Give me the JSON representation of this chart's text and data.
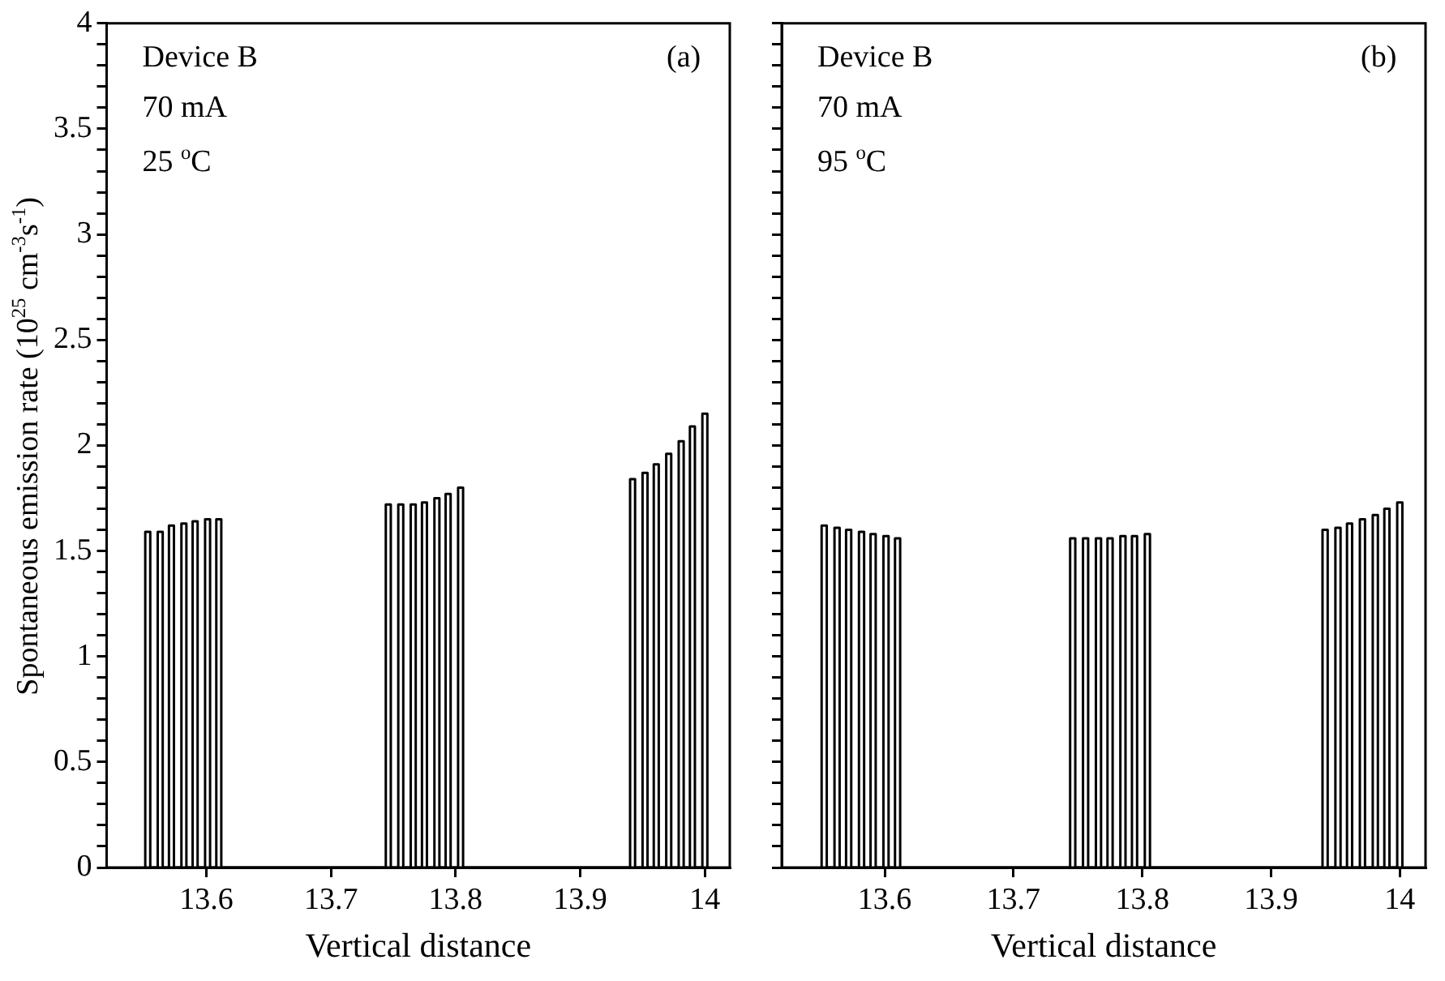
{
  "chart_data": [
    {
      "type": "line",
      "ylabel": "Spontaneous emission rate (10$^{25}$ cm$^{-3}$s$^{-1}$)",
      "xlabel": "Vertical distance",
      "annotations": [
        "Device B",
        "70 mA",
        "25 $^{o}$C",
        "(a)"
      ],
      "x": [
        13.551,
        13.551,
        13.555,
        13.555,
        13.561,
        13.561,
        13.565,
        13.565,
        13.57,
        13.57,
        13.574,
        13.574,
        13.58,
        13.58,
        13.584,
        13.584,
        13.589,
        13.589,
        13.593,
        13.593,
        13.599,
        13.599,
        13.603,
        13.603,
        13.608,
        13.608,
        13.612,
        13.612,
        13.744,
        13.744,
        13.748,
        13.748,
        13.754,
        13.754,
        13.758,
        13.758,
        13.764,
        13.764,
        13.768,
        13.768,
        13.773,
        13.773,
        13.777,
        13.777,
        13.783,
        13.783,
        13.787,
        13.787,
        13.792,
        13.792,
        13.796,
        13.796,
        13.802,
        13.802,
        13.806,
        13.806,
        13.94,
        13.94,
        13.944,
        13.944,
        13.95,
        13.95,
        13.954,
        13.954,
        13.959,
        13.959,
        13.963,
        13.963,
        13.969,
        13.969,
        13.973,
        13.973,
        13.979,
        13.979,
        13.983,
        13.983,
        13.988,
        13.988,
        13.992,
        13.992,
        13.998,
        13.998,
        14.002,
        14.002
      ],
      "series": [
        {
          "color": "#000000",
          "values": [
            0,
            1.59,
            1.59,
            0,
            0,
            1.59,
            1.59,
            0,
            0,
            1.62,
            1.62,
            0,
            0,
            1.63,
            1.63,
            0,
            0,
            1.64,
            1.64,
            0,
            0,
            1.65,
            1.65,
            0,
            0,
            1.65,
            1.65,
            0,
            0,
            1.72,
            1.72,
            0,
            0,
            1.72,
            1.72,
            0,
            0,
            1.72,
            1.72,
            0,
            0,
            1.73,
            1.73,
            0,
            0,
            1.75,
            1.75,
            0,
            0,
            1.77,
            1.77,
            0,
            0,
            1.8,
            1.8,
            0,
            0,
            1.84,
            1.84,
            0,
            0,
            1.87,
            1.87,
            0,
            0,
            1.91,
            1.91,
            0,
            0,
            1.96,
            1.96,
            0,
            0,
            2.02,
            2.02,
            0,
            0,
            2.09,
            2.09,
            0,
            0,
            2.15,
            2.15,
            0
          ]
        }
      ],
      "xlim": [
        13.52,
        14.02
      ],
      "xticks": [
        13.6,
        13.7,
        13.8,
        13.9,
        14
      ],
      "ylim": [
        0,
        4
      ],
      "yticks": [
        0,
        {
          "value": 0.1,
          "label": null
        },
        {
          "value": 0.2,
          "label": null
        },
        {
          "value": 0.3,
          "label": null
        },
        {
          "value": 0.4,
          "label": null
        },
        0.5,
        {
          "value": 0.6,
          "label": null
        },
        {
          "value": 0.7,
          "label": null
        },
        {
          "value": 0.8,
          "label": null
        },
        {
          "value": 0.9,
          "label": null
        },
        1,
        {
          "value": 1.1,
          "label": null
        },
        {
          "value": 1.2,
          "label": null
        },
        {
          "value": 1.3,
          "label": null
        },
        {
          "value": 1.4,
          "label": null
        },
        1.5,
        {
          "value": 1.6,
          "label": null
        },
        {
          "value": 1.7,
          "label": null
        },
        {
          "value": 1.8,
          "label": null
        },
        {
          "value": 1.9,
          "label": null
        },
        2,
        {
          "value": 2.1,
          "label": null
        },
        {
          "value": 2.2,
          "label": null
        },
        {
          "value": 2.3,
          "label": null
        },
        {
          "value": 2.4,
          "label": null
        },
        2.5,
        {
          "value": 2.6,
          "label": null
        },
        {
          "value": 2.7,
          "label": null
        },
        {
          "value": 2.8,
          "label": null
        },
        {
          "value": 2.9,
          "label": null
        },
        3,
        {
          "value": 3.1,
          "label": null
        },
        {
          "value": 3.2,
          "label": null
        },
        {
          "value": 3.3,
          "label": null
        },
        {
          "value": 3.4,
          "label": null
        },
        3.5,
        {
          "value": 3.6,
          "label": null
        },
        {
          "value": 3.7,
          "label": null
        },
        {
          "value": 3.8,
          "label": null
        },
        {
          "value": 3.9,
          "label": null
        },
        4
      ],
      "marker": "none",
      "line_style": "solid",
      "grid": false,
      "legend": false
    },
    {
      "type": "line",
      "xlabel": "Vertical distance",
      "annotations": [
        "Device B",
        "70 mA",
        "95 $^{o}$C",
        "(b)"
      ],
      "x": [
        13.551,
        13.551,
        13.555,
        13.555,
        13.561,
        13.561,
        13.565,
        13.565,
        13.57,
        13.57,
        13.574,
        13.574,
        13.58,
        13.58,
        13.584,
        13.584,
        13.589,
        13.589,
        13.593,
        13.593,
        13.599,
        13.599,
        13.603,
        13.603,
        13.608,
        13.608,
        13.612,
        13.612,
        13.744,
        13.744,
        13.748,
        13.748,
        13.754,
        13.754,
        13.758,
        13.758,
        13.764,
        13.764,
        13.768,
        13.768,
        13.773,
        13.773,
        13.777,
        13.777,
        13.783,
        13.783,
        13.787,
        13.787,
        13.792,
        13.792,
        13.796,
        13.796,
        13.802,
        13.802,
        13.806,
        13.806,
        13.94,
        13.94,
        13.944,
        13.944,
        13.95,
        13.95,
        13.954,
        13.954,
        13.959,
        13.959,
        13.963,
        13.963,
        13.969,
        13.969,
        13.973,
        13.973,
        13.979,
        13.979,
        13.983,
        13.983,
        13.988,
        13.988,
        13.992,
        13.992,
        13.998,
        13.998,
        14.002,
        14.002
      ],
      "series": [
        {
          "color": "#000000",
          "values": [
            0,
            1.62,
            1.62,
            0,
            0,
            1.61,
            1.61,
            0,
            0,
            1.6,
            1.6,
            0,
            0,
            1.59,
            1.59,
            0,
            0,
            1.58,
            1.58,
            0,
            0,
            1.57,
            1.57,
            0,
            0,
            1.56,
            1.56,
            0,
            0,
            1.56,
            1.56,
            0,
            0,
            1.56,
            1.56,
            0,
            0,
            1.56,
            1.56,
            0,
            0,
            1.56,
            1.56,
            0,
            0,
            1.57,
            1.57,
            0,
            0,
            1.57,
            1.57,
            0,
            0,
            1.58,
            1.58,
            0,
            0,
            1.6,
            1.6,
            0,
            0,
            1.61,
            1.61,
            0,
            0,
            1.63,
            1.63,
            0,
            0,
            1.65,
            1.65,
            0,
            0,
            1.67,
            1.67,
            0,
            0,
            1.7,
            1.7,
            0,
            0,
            1.73,
            1.73,
            0
          ]
        }
      ],
      "xlim": [
        13.52,
        14.02
      ],
      "xticks": [
        13.6,
        13.7,
        13.8,
        13.9,
        14
      ],
      "ylim": [
        0,
        4
      ],
      "yticks": [
        0,
        {
          "value": 0.1,
          "label": null
        },
        {
          "value": 0.2,
          "label": null
        },
        {
          "value": 0.3,
          "label": null
        },
        {
          "value": 0.4,
          "label": null
        },
        0.5,
        {
          "value": 0.6,
          "label": null
        },
        {
          "value": 0.7,
          "label": null
        },
        {
          "value": 0.8,
          "label": null
        },
        {
          "value": 0.9,
          "label": null
        },
        1,
        {
          "value": 1.1,
          "label": null
        },
        {
          "value": 1.2,
          "label": null
        },
        {
          "value": 1.3,
          "label": null
        },
        {
          "value": 1.4,
          "label": null
        },
        1.5,
        {
          "value": 1.6,
          "label": null
        },
        {
          "value": 1.7,
          "label": null
        },
        {
          "value": 1.8,
          "label": null
        },
        {
          "value": 1.9,
          "label": null
        },
        2,
        {
          "value": 2.1,
          "label": null
        },
        {
          "value": 2.2,
          "label": null
        },
        {
          "value": 2.3,
          "label": null
        },
        {
          "value": 2.4,
          "label": null
        },
        2.5,
        {
          "value": 2.6,
          "label": null
        },
        {
          "value": 2.7,
          "label": null
        },
        {
          "value": 2.8,
          "label": null
        },
        {
          "value": 2.9,
          "label": null
        },
        3,
        {
          "value": 3.1,
          "label": null
        },
        {
          "value": 3.2,
          "label": null
        },
        {
          "value": 3.3,
          "label": null
        },
        {
          "value": 3.4,
          "label": null
        },
        3.5,
        {
          "value": 3.6,
          "label": null
        },
        {
          "value": 3.7,
          "label": null
        },
        {
          "value": 3.8,
          "label": null
        },
        {
          "value": 3.9,
          "label": null
        },
        4
      ],
      "tick_labels": "x",
      "marker": "none",
      "line_style": "solid",
      "grid": false,
      "legend": false
    }
  ]
}
